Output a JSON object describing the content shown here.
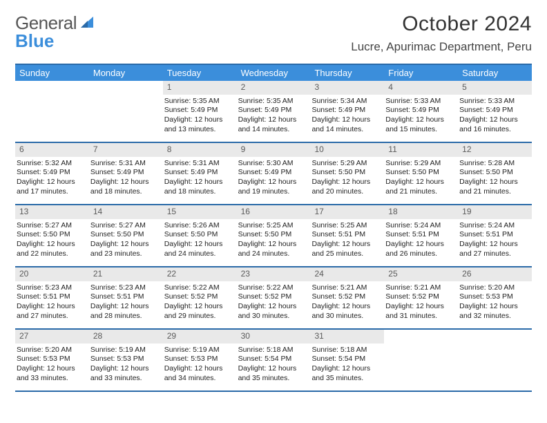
{
  "brand": {
    "part1": "General",
    "part2": "Blue"
  },
  "title": "October 2024",
  "location": "Lucre, Apurimac Department, Peru",
  "colors": {
    "header_bg": "#3b8edb",
    "rule": "#2a6aa8",
    "daynum_bg": "#e9e9e9",
    "daynum_fg": "#5a5a5a",
    "body_text": "#222222"
  },
  "day_names": [
    "Sunday",
    "Monday",
    "Tuesday",
    "Wednesday",
    "Thursday",
    "Friday",
    "Saturday"
  ],
  "weeks": [
    [
      {
        "n": "",
        "sr": "",
        "ss": "",
        "dl": ""
      },
      {
        "n": "",
        "sr": "",
        "ss": "",
        "dl": ""
      },
      {
        "n": "1",
        "sr": "Sunrise: 5:35 AM",
        "ss": "Sunset: 5:49 PM",
        "dl": "Daylight: 12 hours and 13 minutes."
      },
      {
        "n": "2",
        "sr": "Sunrise: 5:35 AM",
        "ss": "Sunset: 5:49 PM",
        "dl": "Daylight: 12 hours and 14 minutes."
      },
      {
        "n": "3",
        "sr": "Sunrise: 5:34 AM",
        "ss": "Sunset: 5:49 PM",
        "dl": "Daylight: 12 hours and 14 minutes."
      },
      {
        "n": "4",
        "sr": "Sunrise: 5:33 AM",
        "ss": "Sunset: 5:49 PM",
        "dl": "Daylight: 12 hours and 15 minutes."
      },
      {
        "n": "5",
        "sr": "Sunrise: 5:33 AM",
        "ss": "Sunset: 5:49 PM",
        "dl": "Daylight: 12 hours and 16 minutes."
      }
    ],
    [
      {
        "n": "6",
        "sr": "Sunrise: 5:32 AM",
        "ss": "Sunset: 5:49 PM",
        "dl": "Daylight: 12 hours and 17 minutes."
      },
      {
        "n": "7",
        "sr": "Sunrise: 5:31 AM",
        "ss": "Sunset: 5:49 PM",
        "dl": "Daylight: 12 hours and 18 minutes."
      },
      {
        "n": "8",
        "sr": "Sunrise: 5:31 AM",
        "ss": "Sunset: 5:49 PM",
        "dl": "Daylight: 12 hours and 18 minutes."
      },
      {
        "n": "9",
        "sr": "Sunrise: 5:30 AM",
        "ss": "Sunset: 5:49 PM",
        "dl": "Daylight: 12 hours and 19 minutes."
      },
      {
        "n": "10",
        "sr": "Sunrise: 5:29 AM",
        "ss": "Sunset: 5:50 PM",
        "dl": "Daylight: 12 hours and 20 minutes."
      },
      {
        "n": "11",
        "sr": "Sunrise: 5:29 AM",
        "ss": "Sunset: 5:50 PM",
        "dl": "Daylight: 12 hours and 21 minutes."
      },
      {
        "n": "12",
        "sr": "Sunrise: 5:28 AM",
        "ss": "Sunset: 5:50 PM",
        "dl": "Daylight: 12 hours and 21 minutes."
      }
    ],
    [
      {
        "n": "13",
        "sr": "Sunrise: 5:27 AM",
        "ss": "Sunset: 5:50 PM",
        "dl": "Daylight: 12 hours and 22 minutes."
      },
      {
        "n": "14",
        "sr": "Sunrise: 5:27 AM",
        "ss": "Sunset: 5:50 PM",
        "dl": "Daylight: 12 hours and 23 minutes."
      },
      {
        "n": "15",
        "sr": "Sunrise: 5:26 AM",
        "ss": "Sunset: 5:50 PM",
        "dl": "Daylight: 12 hours and 24 minutes."
      },
      {
        "n": "16",
        "sr": "Sunrise: 5:25 AM",
        "ss": "Sunset: 5:50 PM",
        "dl": "Daylight: 12 hours and 24 minutes."
      },
      {
        "n": "17",
        "sr": "Sunrise: 5:25 AM",
        "ss": "Sunset: 5:51 PM",
        "dl": "Daylight: 12 hours and 25 minutes."
      },
      {
        "n": "18",
        "sr": "Sunrise: 5:24 AM",
        "ss": "Sunset: 5:51 PM",
        "dl": "Daylight: 12 hours and 26 minutes."
      },
      {
        "n": "19",
        "sr": "Sunrise: 5:24 AM",
        "ss": "Sunset: 5:51 PM",
        "dl": "Daylight: 12 hours and 27 minutes."
      }
    ],
    [
      {
        "n": "20",
        "sr": "Sunrise: 5:23 AM",
        "ss": "Sunset: 5:51 PM",
        "dl": "Daylight: 12 hours and 27 minutes."
      },
      {
        "n": "21",
        "sr": "Sunrise: 5:23 AM",
        "ss": "Sunset: 5:51 PM",
        "dl": "Daylight: 12 hours and 28 minutes."
      },
      {
        "n": "22",
        "sr": "Sunrise: 5:22 AM",
        "ss": "Sunset: 5:52 PM",
        "dl": "Daylight: 12 hours and 29 minutes."
      },
      {
        "n": "23",
        "sr": "Sunrise: 5:22 AM",
        "ss": "Sunset: 5:52 PM",
        "dl": "Daylight: 12 hours and 30 minutes."
      },
      {
        "n": "24",
        "sr": "Sunrise: 5:21 AM",
        "ss": "Sunset: 5:52 PM",
        "dl": "Daylight: 12 hours and 30 minutes."
      },
      {
        "n": "25",
        "sr": "Sunrise: 5:21 AM",
        "ss": "Sunset: 5:52 PM",
        "dl": "Daylight: 12 hours and 31 minutes."
      },
      {
        "n": "26",
        "sr": "Sunrise: 5:20 AM",
        "ss": "Sunset: 5:53 PM",
        "dl": "Daylight: 12 hours and 32 minutes."
      }
    ],
    [
      {
        "n": "27",
        "sr": "Sunrise: 5:20 AM",
        "ss": "Sunset: 5:53 PM",
        "dl": "Daylight: 12 hours and 33 minutes."
      },
      {
        "n": "28",
        "sr": "Sunrise: 5:19 AM",
        "ss": "Sunset: 5:53 PM",
        "dl": "Daylight: 12 hours and 33 minutes."
      },
      {
        "n": "29",
        "sr": "Sunrise: 5:19 AM",
        "ss": "Sunset: 5:53 PM",
        "dl": "Daylight: 12 hours and 34 minutes."
      },
      {
        "n": "30",
        "sr": "Sunrise: 5:18 AM",
        "ss": "Sunset: 5:54 PM",
        "dl": "Daylight: 12 hours and 35 minutes."
      },
      {
        "n": "31",
        "sr": "Sunrise: 5:18 AM",
        "ss": "Sunset: 5:54 PM",
        "dl": "Daylight: 12 hours and 35 minutes."
      },
      {
        "n": "",
        "sr": "",
        "ss": "",
        "dl": ""
      },
      {
        "n": "",
        "sr": "",
        "ss": "",
        "dl": ""
      }
    ]
  ]
}
